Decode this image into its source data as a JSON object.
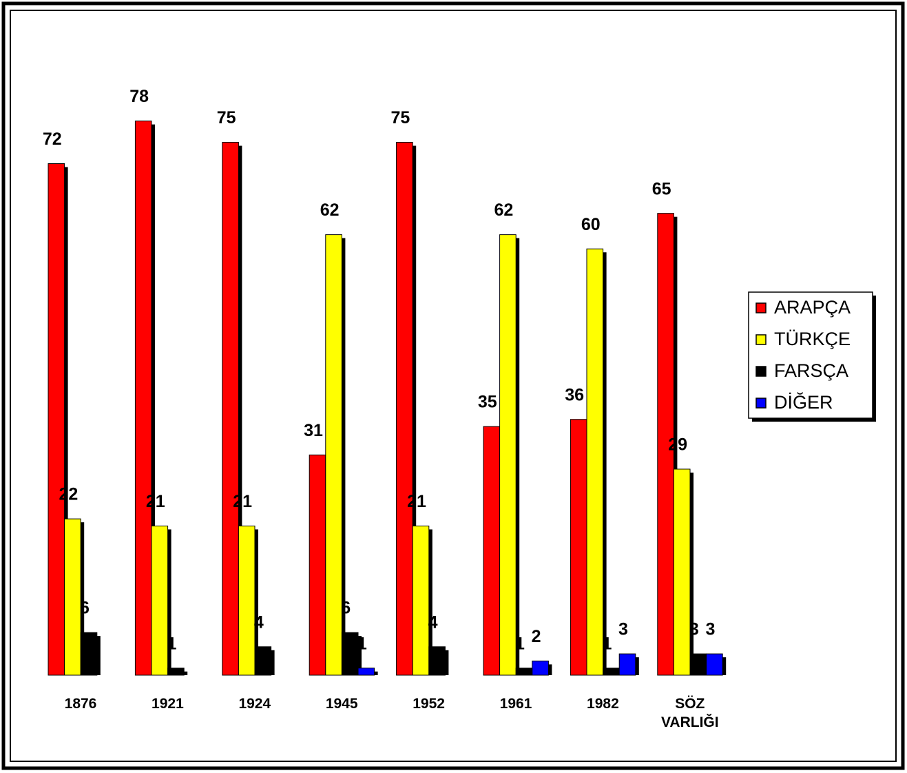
{
  "chart_data": {
    "type": "bar",
    "categories": [
      "1876",
      "1921",
      "1924",
      "1945",
      "1952",
      "1961",
      "1982",
      "SÖZ VARLIĞI"
    ],
    "series": [
      {
        "name": "ARAPÇA",
        "color": "#ff0000",
        "values": [
          72,
          78,
          75,
          31,
          75,
          35,
          36,
          65
        ]
      },
      {
        "name": "TÜRKÇE",
        "color": "#ffff00",
        "values": [
          22,
          21,
          21,
          62,
          21,
          62,
          60,
          29
        ]
      },
      {
        "name": "FARSÇA",
        "color": "#000000",
        "values": [
          6,
          1,
          4,
          6,
          4,
          1,
          1,
          3
        ]
      },
      {
        "name": "DİĞER",
        "color": "#0000ff",
        "values": [
          null,
          null,
          null,
          1,
          null,
          2,
          3,
          3
        ]
      }
    ],
    "ylim": [
      0,
      80
    ],
    "legend": "right"
  }
}
